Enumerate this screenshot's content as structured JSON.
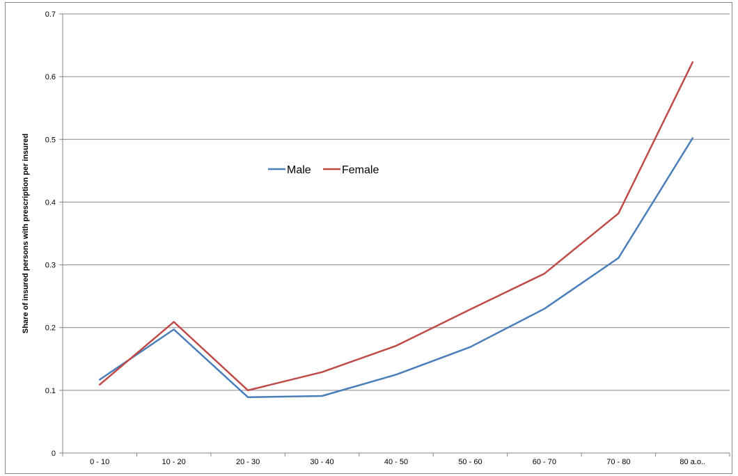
{
  "chart_data": {
    "type": "line",
    "title": "",
    "xlabel": "",
    "ylabel": "Share of insured persons with prescription per insured",
    "categories": [
      "0 - 10",
      "10 - 20",
      "20 - 30",
      "30 - 40",
      "40 - 50",
      "50 - 60",
      "60 - 70",
      "70 - 80",
      "80 a.o.."
    ],
    "ylim": [
      0,
      0.7
    ],
    "yticks": [
      "0",
      "0.1",
      "0.2",
      "0.3",
      "0.4",
      "0.5",
      "0.6",
      "0.7"
    ],
    "grid": true,
    "legend_position": "center-left",
    "series": [
      {
        "name": "Male",
        "color": "#4a7ebb",
        "values": [
          0.117,
          0.197,
          0.089,
          0.091,
          0.125,
          0.169,
          0.23,
          0.311,
          0.502
        ]
      },
      {
        "name": "Female",
        "color": "#be4b48",
        "values": [
          0.109,
          0.209,
          0.1,
          0.129,
          0.171,
          0.229,
          0.286,
          0.382,
          0.623
        ]
      }
    ]
  }
}
